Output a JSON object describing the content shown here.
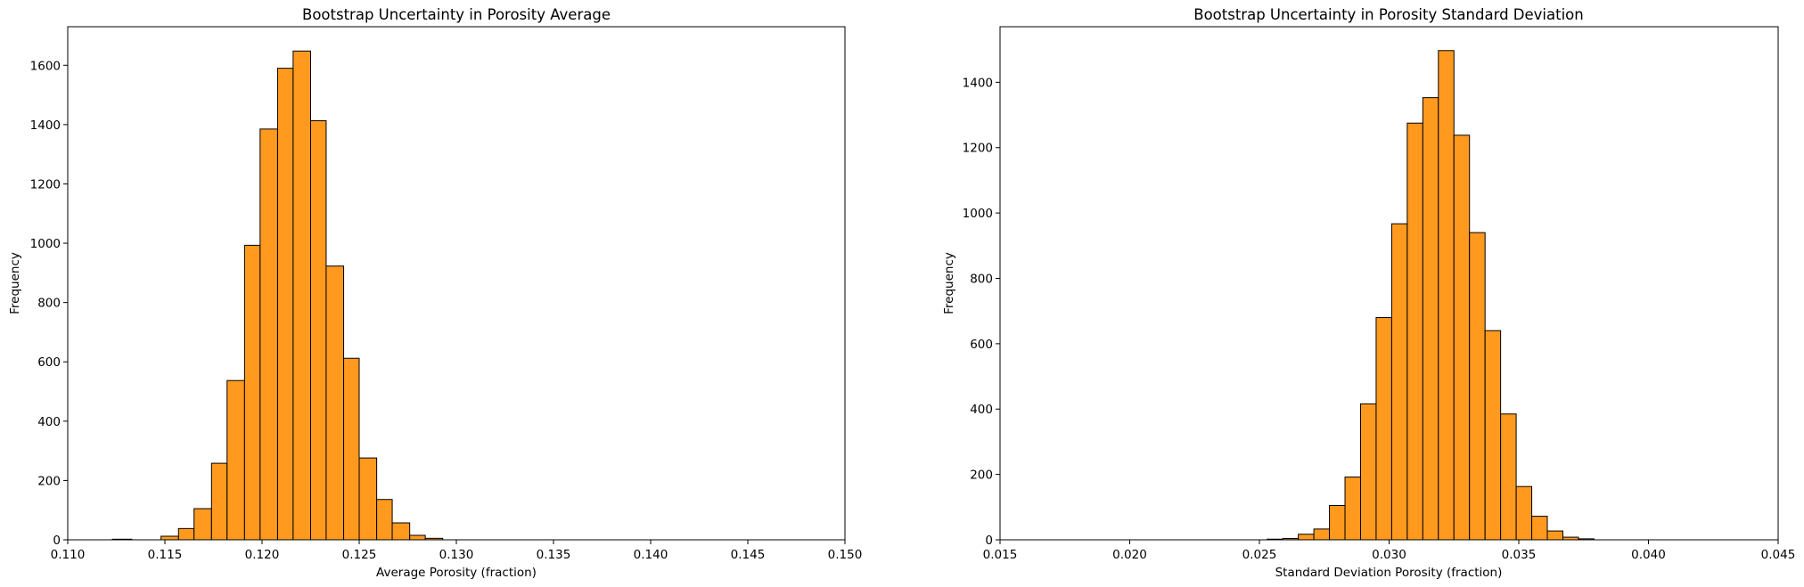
{
  "colors": {
    "bar_fill": "#ff9a1f",
    "bar_edge": "#000000",
    "axis": "#000000"
  },
  "chart_data": [
    {
      "type": "bar",
      "title": "Bootstrap Uncertainty in Porosity Average",
      "xlabel": "Average Porosity (fraction)",
      "ylabel": "Frequency",
      "xlim": [
        0.11,
        0.15
      ],
      "ylim": [
        0,
        1730
      ],
      "xticks": [
        "0.110",
        "0.115",
        "0.120",
        "0.125",
        "0.130",
        "0.135",
        "0.140",
        "0.145",
        "0.150"
      ],
      "yticks": [
        "0",
        "200",
        "400",
        "600",
        "800",
        "1000",
        "1200",
        "1400",
        "1600"
      ],
      "bins": [
        {
          "x0": 0.1123,
          "x1": 0.1133,
          "count": 2
        },
        {
          "x0": 0.1148,
          "x1": 0.1157,
          "count": 12
        },
        {
          "x0": 0.1157,
          "x1": 0.1165,
          "count": 38
        },
        {
          "x0": 0.1165,
          "x1": 0.1174,
          "count": 105
        },
        {
          "x0": 0.1174,
          "x1": 0.1182,
          "count": 258
        },
        {
          "x0": 0.1182,
          "x1": 0.1191,
          "count": 537
        },
        {
          "x0": 0.1191,
          "x1": 0.1199,
          "count": 993
        },
        {
          "x0": 0.1199,
          "x1": 0.1208,
          "count": 1385
        },
        {
          "x0": 0.1208,
          "x1": 0.1216,
          "count": 1590
        },
        {
          "x0": 0.1216,
          "x1": 0.1225,
          "count": 1648
        },
        {
          "x0": 0.1225,
          "x1": 0.1233,
          "count": 1413
        },
        {
          "x0": 0.1233,
          "x1": 0.1242,
          "count": 923
        },
        {
          "x0": 0.1242,
          "x1": 0.125,
          "count": 612
        },
        {
          "x0": 0.125,
          "x1": 0.1259,
          "count": 276
        },
        {
          "x0": 0.1259,
          "x1": 0.1267,
          "count": 136
        },
        {
          "x0": 0.1267,
          "x1": 0.1276,
          "count": 57
        },
        {
          "x0": 0.1276,
          "x1": 0.1284,
          "count": 15
        },
        {
          "x0": 0.1284,
          "x1": 0.1293,
          "count": 5
        }
      ]
    },
    {
      "type": "bar",
      "title": "Bootstrap Uncertainty in Porosity Standard Deviation",
      "xlabel": "Standard Deviation Porosity (fraction)",
      "ylabel": "Frequency",
      "xlim": [
        0.015,
        0.045
      ],
      "ylim": [
        0,
        1570
      ],
      "xticks": [
        "0.015",
        "0.020",
        "0.025",
        "0.030",
        "0.035",
        "0.040",
        "0.045"
      ],
      "yticks": [
        "0",
        "200",
        "400",
        "600",
        "800",
        "1000",
        "1200",
        "1400"
      ],
      "bins": [
        {
          "x0": 0.0253,
          "x1": 0.0259,
          "count": 2
        },
        {
          "x0": 0.0259,
          "x1": 0.0265,
          "count": 4
        },
        {
          "x0": 0.0265,
          "x1": 0.0271,
          "count": 17
        },
        {
          "x0": 0.0271,
          "x1": 0.0277,
          "count": 33
        },
        {
          "x0": 0.0277,
          "x1": 0.0283,
          "count": 105
        },
        {
          "x0": 0.0283,
          "x1": 0.0289,
          "count": 192
        },
        {
          "x0": 0.0289,
          "x1": 0.0295,
          "count": 416
        },
        {
          "x0": 0.0295,
          "x1": 0.0301,
          "count": 680
        },
        {
          "x0": 0.0301,
          "x1": 0.0307,
          "count": 967
        },
        {
          "x0": 0.0307,
          "x1": 0.0313,
          "count": 1275
        },
        {
          "x0": 0.0313,
          "x1": 0.0319,
          "count": 1353
        },
        {
          "x0": 0.0319,
          "x1": 0.0325,
          "count": 1497
        },
        {
          "x0": 0.0325,
          "x1": 0.0331,
          "count": 1238
        },
        {
          "x0": 0.0331,
          "x1": 0.0337,
          "count": 940
        },
        {
          "x0": 0.0337,
          "x1": 0.0343,
          "count": 640
        },
        {
          "x0": 0.0343,
          "x1": 0.0349,
          "count": 385
        },
        {
          "x0": 0.0349,
          "x1": 0.0355,
          "count": 163
        },
        {
          "x0": 0.0355,
          "x1": 0.0361,
          "count": 72
        },
        {
          "x0": 0.0361,
          "x1": 0.0367,
          "count": 27
        },
        {
          "x0": 0.0367,
          "x1": 0.0373,
          "count": 8
        },
        {
          "x0": 0.0373,
          "x1": 0.0379,
          "count": 3
        }
      ]
    }
  ]
}
